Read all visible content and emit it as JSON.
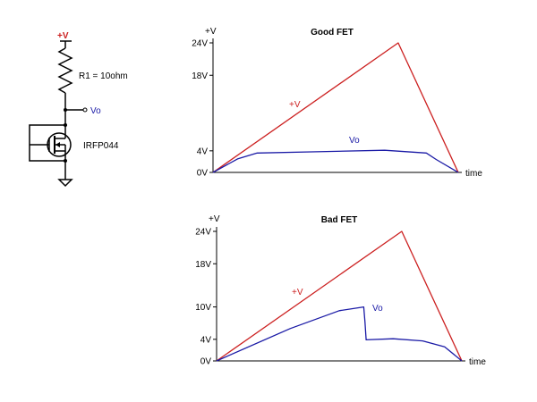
{
  "colors": {
    "supply": "#cc2020",
    "output": "#1a1aa6",
    "ink": "#000000"
  },
  "schematic": {
    "supply_label": "+V",
    "resistor_label": "R1 = 10ohm",
    "output_label": "Vo",
    "transistor_label": "IRFP044",
    "ground": "ground-symbol"
  },
  "chart_data": [
    {
      "type": "line",
      "title": "Good FET",
      "ylabel": "+V",
      "xlabel": "time",
      "ylim": [
        0,
        24
      ],
      "yticks": [
        0,
        4,
        18,
        24
      ],
      "ytick_labels": [
        "0V",
        "4V",
        "18V",
        "24V"
      ],
      "series": [
        {
          "name": "+V",
          "points": [
            [
              0,
              0
            ],
            [
              0.755,
              24
            ],
            [
              1,
              0
            ]
          ]
        },
        {
          "name": "Vo",
          "points": [
            [
              0,
              0
            ],
            [
              0.1,
              2.5
            ],
            [
              0.18,
              3.6
            ],
            [
              0.4,
              3.8
            ],
            [
              0.7,
              4.1
            ],
            [
              0.87,
              3.6
            ],
            [
              0.91,
              2.4
            ],
            [
              1,
              0
            ]
          ]
        }
      ]
    },
    {
      "type": "line",
      "title": "Bad FET",
      "ylabel": "+V",
      "xlabel": "time",
      "ylim": [
        0,
        24
      ],
      "yticks": [
        0,
        4,
        10,
        18,
        24
      ],
      "ytick_labels": [
        "0V",
        "4V",
        "10V",
        "18V",
        "24V"
      ],
      "series": [
        {
          "name": "+V",
          "points": [
            [
              0,
              0
            ],
            [
              0.755,
              24
            ],
            [
              1,
              0
            ]
          ]
        },
        {
          "name": "Vo",
          "points": [
            [
              0,
              0
            ],
            [
              0.3,
              6
            ],
            [
              0.5,
              9.3
            ],
            [
              0.6,
              10
            ],
            [
              0.605,
              7.2
            ],
            [
              0.61,
              3.9
            ],
            [
              0.72,
              4.1
            ],
            [
              0.84,
              3.7
            ],
            [
              0.93,
              2.6
            ],
            [
              1,
              0
            ]
          ]
        }
      ]
    }
  ]
}
